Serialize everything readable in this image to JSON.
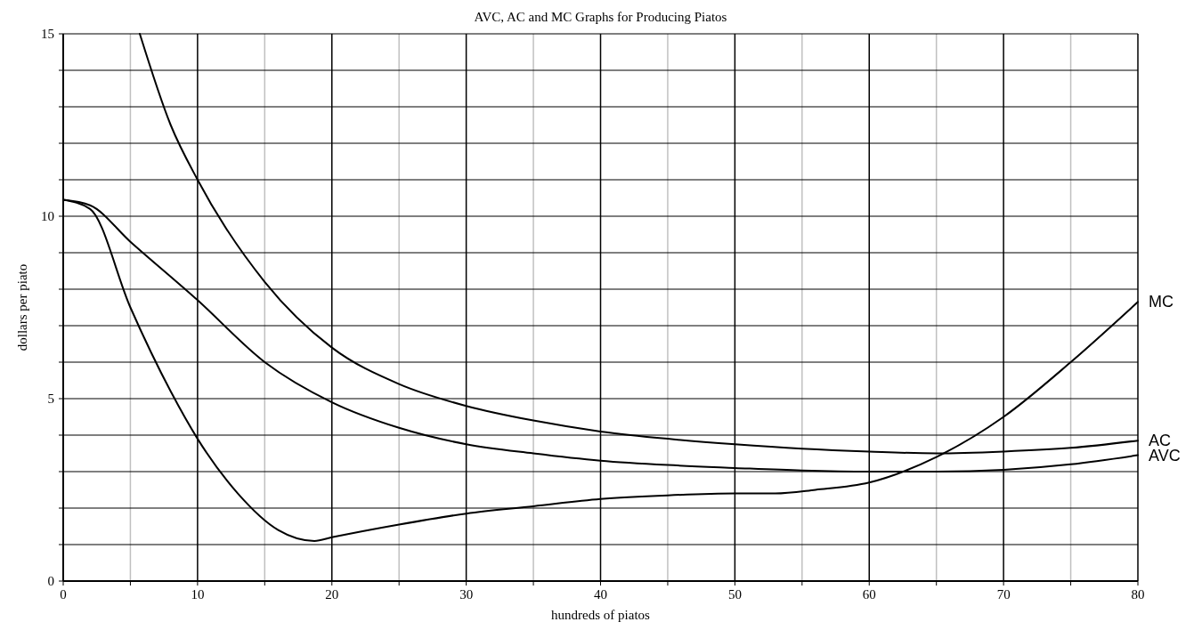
{
  "chart_data": {
    "type": "line",
    "title": "AVC, AC and MC Graphs for Producing Piatos",
    "xlabel": "hundreds of piatos",
    "ylabel": "dollars per piato",
    "xlim": [
      0,
      80
    ],
    "xticks": [
      0,
      {
        "value": 5,
        "label": null
      },
      10,
      {
        "value": 15,
        "label": null
      },
      20,
      {
        "value": 25,
        "label": null
      },
      30,
      {
        "value": 35,
        "label": null
      },
      40,
      {
        "value": 45,
        "label": null
      },
      50,
      {
        "value": 55,
        "label": null
      },
      60,
      {
        "value": 65,
        "label": null
      },
      70,
      {
        "value": 75,
        "label": null
      },
      80
    ],
    "ylim": [
      0,
      15
    ],
    "yticks": [
      0,
      {
        "value": 1,
        "label": null
      },
      {
        "value": 2,
        "label": null
      },
      {
        "value": 3,
        "label": null
      },
      {
        "value": 4,
        "label": null
      },
      5,
      {
        "value": 6,
        "label": null
      },
      {
        "value": 7,
        "label": null
      },
      {
        "value": 8,
        "label": null
      },
      {
        "value": 9,
        "label": null
      },
      10,
      {
        "value": 11,
        "label": null
      },
      {
        "value": 12,
        "label": null
      },
      {
        "value": 13,
        "label": null
      },
      {
        "value": 14,
        "label": null
      },
      15
    ],
    "grid": true,
    "marker": "none",
    "line_style": "solid",
    "series": [
      {
        "name": "MC",
        "color": "#000000",
        "x": [
          0,
          2,
          5,
          8,
          10,
          13,
          16,
          18.7,
          20,
          25,
          30,
          35,
          40,
          45,
          50,
          53,
          56,
          60,
          65,
          70,
          75,
          80
        ],
        "values": [
          10.45,
          10.2,
          7.5,
          5.2,
          3.9,
          2.4,
          1.4,
          1.1,
          1.2,
          1.55,
          1.85,
          2.05,
          2.25,
          2.35,
          2.4,
          2.4,
          2.5,
          2.7,
          3.4,
          4.5,
          6.0,
          7.65
        ]
      },
      {
        "name": "AC",
        "color": "#000000",
        "x": [
          5.7,
          8,
          10,
          15,
          20,
          25,
          30,
          35,
          40,
          45,
          50,
          55,
          60,
          65,
          70,
          75,
          80
        ],
        "values": [
          15,
          12.5,
          11.0,
          8.2,
          6.4,
          5.4,
          4.8,
          4.4,
          4.1,
          3.9,
          3.75,
          3.63,
          3.55,
          3.5,
          3.55,
          3.65,
          3.85
        ]
      },
      {
        "name": "AVC",
        "color": "#000000",
        "x": [
          0,
          2,
          5,
          10,
          15,
          20,
          25,
          30,
          35,
          40,
          45,
          50,
          55,
          60,
          65,
          70,
          75,
          80
        ],
        "values": [
          10.45,
          10.3,
          9.3,
          7.7,
          6.0,
          4.9,
          4.2,
          3.75,
          3.5,
          3.3,
          3.18,
          3.1,
          3.03,
          3.0,
          3.0,
          3.05,
          3.2,
          3.45
        ]
      }
    ]
  }
}
